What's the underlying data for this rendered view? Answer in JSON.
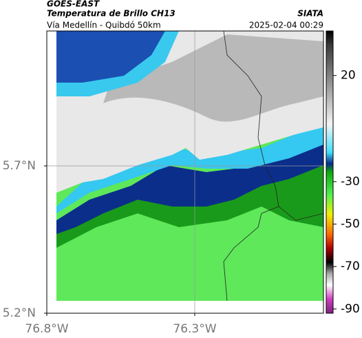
{
  "header": {
    "satellite": "GOES-EAST",
    "product": "Temperatura de Brillo CH13",
    "organization": "SIATA",
    "route": "Vía Medellín - Quibdó 50km",
    "timestamp": "2025-02-04 00:29"
  },
  "map": {
    "xlim": [
      -76.8,
      -75.865
    ],
    "ylim": [
      5.2,
      6.158
    ],
    "xticks": [
      {
        "value": -76.8,
        "label": "76.8°W"
      },
      {
        "value": -76.3,
        "label": "76.3°W"
      }
    ],
    "yticks": [
      {
        "value": 5.2,
        "label": "5.2°N"
      },
      {
        "value": 5.7,
        "label": "5.7°N"
      }
    ]
  },
  "colorbar": {
    "lim": [
      -92,
      41
    ],
    "ticks": [
      20,
      -30,
      -50,
      -70,
      -90
    ]
  }
}
